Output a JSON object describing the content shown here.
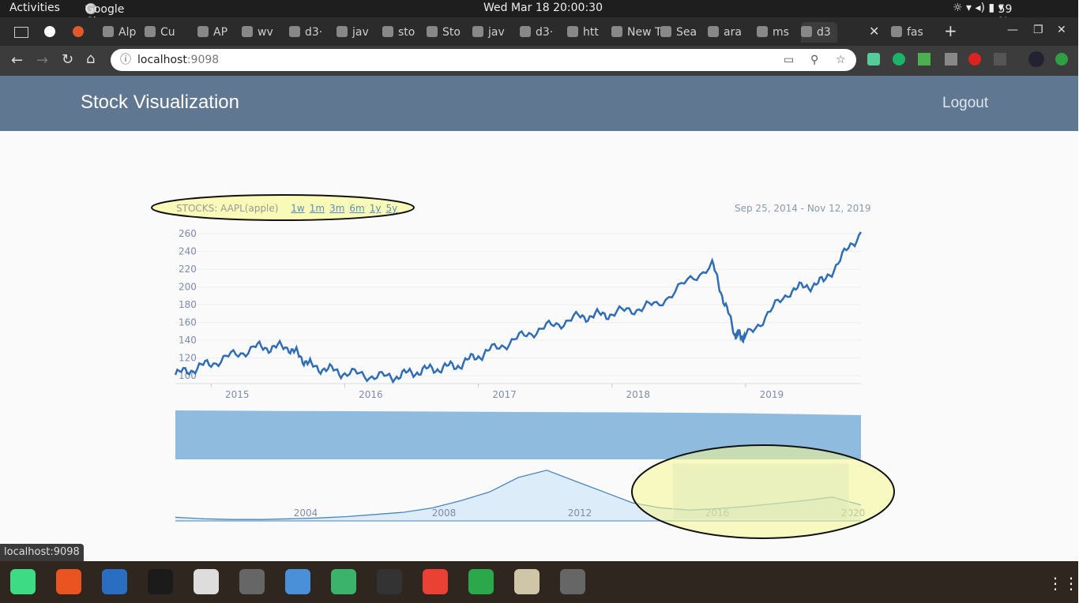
{
  "system": {
    "activities": "Activities",
    "app_name": "Google Chrome",
    "clock": "Wed Mar 18  20:00:30",
    "battery": "59 %"
  },
  "tabs": [
    "Alp",
    "Cu",
    "AP",
    "wv",
    "d3·",
    "jav",
    "sto",
    "Sto",
    "jav",
    "d3·",
    "htt",
    "New T",
    "Sea",
    "ara",
    "ms",
    "d3",
    "fas"
  ],
  "browser": {
    "url_host": "localhost",
    "url_port": ":9098",
    "status_url": "localhost:9098"
  },
  "app": {
    "title": "Stock Visualization",
    "logout": "Logout"
  },
  "chart_controls": {
    "label": "STOCKS: AAPL(apple)",
    "ranges": [
      "1w",
      "1m",
      "3m",
      "6m",
      "1y",
      "5y"
    ],
    "date_range": "Sep 25, 2014 - Nov 12, 2019"
  },
  "chart_data": [
    {
      "type": "line",
      "x_ticks": [
        "2015",
        "2016",
        "2017",
        "2018",
        "2019"
      ],
      "y_ticks": [
        100,
        120,
        140,
        160,
        180,
        200,
        220,
        240,
        260
      ],
      "ylim": [
        100,
        262
      ],
      "xlim": [
        "2014-09-25",
        "2019-11-12"
      ],
      "grid": true,
      "series": [
        {
          "color": "#2f6db5",
          "x": [
            "2014-09-25",
            "2015-01",
            "2015-05",
            "2015-08",
            "2015-10",
            "2016-01",
            "2016-05",
            "2016-08",
            "2016-11",
            "2017-02",
            "2017-06",
            "2017-10",
            "2018-01",
            "2018-05",
            "2018-10",
            "2018-12",
            "2019-01",
            "2019-05",
            "2019-08",
            "2019-11-12"
          ],
          "values": [
            101,
            114,
            132,
            132,
            111,
            103,
            98,
            106,
            111,
            128,
            150,
            166,
            170,
            180,
            226,
            148,
            143,
            196,
            206,
            262
          ]
        }
      ]
    },
    {
      "type": "area",
      "color": "#8fbbde",
      "note_values": [
        1.0,
        1.0,
        0.99,
        0.97,
        0.95,
        0.93,
        0.9
      ]
    },
    {
      "type": "area",
      "x_ticks": [
        "2004",
        "2008",
        "2012",
        "2016",
        "2020"
      ],
      "series": [
        {
          "color": "#4a86bc",
          "values": [
            5,
            3,
            2,
            2,
            3,
            4,
            6,
            9,
            12,
            18,
            28,
            40,
            60,
            70,
            55,
            40,
            25,
            18,
            15,
            17,
            20,
            24,
            28,
            33,
            22
          ]
        }
      ],
      "brush": "2015-2019"
    }
  ],
  "taskbar": [
    "Android Studio",
    "Software",
    "LibreOffice Writer",
    "PyCharm",
    "Image Viewer",
    "Settings",
    "Files",
    "Atom",
    "Terminal",
    "Google Chrome",
    "LibreOffice Calc",
    "Disks",
    "Backup",
    "Show Applications"
  ]
}
